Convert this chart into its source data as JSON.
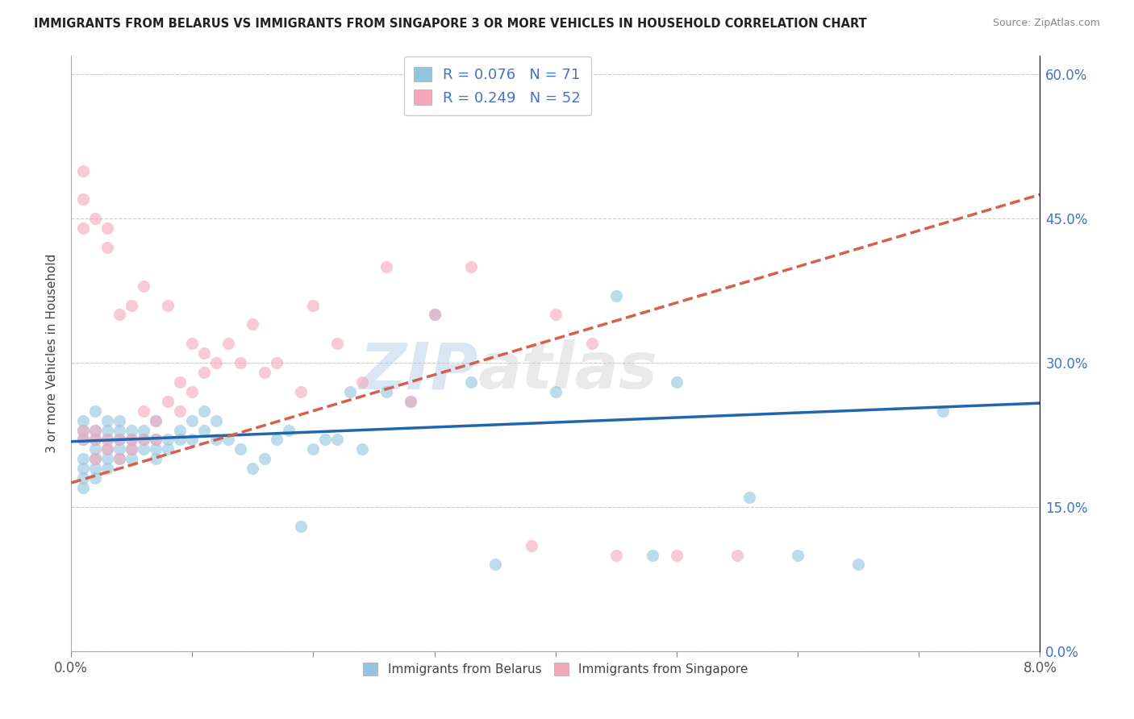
{
  "title": "IMMIGRANTS FROM BELARUS VS IMMIGRANTS FROM SINGAPORE 3 OR MORE VEHICLES IN HOUSEHOLD CORRELATION CHART",
  "source": "Source: ZipAtlas.com",
  "ylabel": "3 or more Vehicles in Household",
  "xmin": 0.0,
  "xmax": 0.08,
  "ymin": 0.0,
  "ymax": 0.62,
  "R_belarus": 0.076,
  "N_belarus": 71,
  "R_singapore": 0.249,
  "N_singapore": 52,
  "color_belarus": "#92c5de",
  "color_singapore": "#f4a7b9",
  "trendline_belarus_color": "#2166ac",
  "trendline_singapore_color": "#d6604d",
  "watermark_zip": "ZIP",
  "watermark_atlas": "atlas",
  "belarus_x": [
    0.001,
    0.001,
    0.001,
    0.001,
    0.001,
    0.001,
    0.001,
    0.002,
    0.002,
    0.002,
    0.002,
    0.002,
    0.002,
    0.002,
    0.003,
    0.003,
    0.003,
    0.003,
    0.003,
    0.003,
    0.004,
    0.004,
    0.004,
    0.004,
    0.004,
    0.005,
    0.005,
    0.005,
    0.005,
    0.006,
    0.006,
    0.006,
    0.007,
    0.007,
    0.007,
    0.007,
    0.008,
    0.008,
    0.009,
    0.009,
    0.01,
    0.01,
    0.011,
    0.011,
    0.012,
    0.012,
    0.013,
    0.014,
    0.015,
    0.016,
    0.017,
    0.018,
    0.019,
    0.02,
    0.021,
    0.022,
    0.023,
    0.024,
    0.026,
    0.028,
    0.03,
    0.033,
    0.035,
    0.04,
    0.045,
    0.048,
    0.05,
    0.056,
    0.06,
    0.065,
    0.072
  ],
  "belarus_y": [
    0.22,
    0.23,
    0.24,
    0.2,
    0.19,
    0.18,
    0.17,
    0.22,
    0.23,
    0.25,
    0.21,
    0.2,
    0.19,
    0.18,
    0.22,
    0.23,
    0.24,
    0.2,
    0.21,
    0.19,
    0.22,
    0.23,
    0.21,
    0.2,
    0.24,
    0.22,
    0.21,
    0.23,
    0.2,
    0.22,
    0.23,
    0.21,
    0.24,
    0.22,
    0.21,
    0.2,
    0.22,
    0.21,
    0.23,
    0.22,
    0.24,
    0.22,
    0.25,
    0.23,
    0.22,
    0.24,
    0.22,
    0.21,
    0.19,
    0.2,
    0.22,
    0.23,
    0.13,
    0.21,
    0.22,
    0.22,
    0.27,
    0.21,
    0.27,
    0.26,
    0.35,
    0.28,
    0.09,
    0.27,
    0.37,
    0.1,
    0.28,
    0.16,
    0.1,
    0.09,
    0.25
  ],
  "singapore_x": [
    0.001,
    0.001,
    0.001,
    0.001,
    0.001,
    0.002,
    0.002,
    0.002,
    0.002,
    0.003,
    0.003,
    0.003,
    0.003,
    0.004,
    0.004,
    0.004,
    0.005,
    0.005,
    0.005,
    0.006,
    0.006,
    0.006,
    0.007,
    0.007,
    0.008,
    0.008,
    0.009,
    0.009,
    0.01,
    0.01,
    0.011,
    0.011,
    0.012,
    0.013,
    0.014,
    0.015,
    0.016,
    0.017,
    0.019,
    0.02,
    0.022,
    0.024,
    0.026,
    0.028,
    0.03,
    0.033,
    0.038,
    0.04,
    0.043,
    0.045,
    0.05,
    0.055
  ],
  "singapore_y": [
    0.22,
    0.23,
    0.5,
    0.47,
    0.44,
    0.22,
    0.23,
    0.45,
    0.2,
    0.21,
    0.22,
    0.44,
    0.42,
    0.2,
    0.22,
    0.35,
    0.21,
    0.22,
    0.36,
    0.25,
    0.22,
    0.38,
    0.22,
    0.24,
    0.26,
    0.36,
    0.25,
    0.28,
    0.27,
    0.32,
    0.29,
    0.31,
    0.3,
    0.32,
    0.3,
    0.34,
    0.29,
    0.3,
    0.27,
    0.36,
    0.32,
    0.28,
    0.4,
    0.26,
    0.35,
    0.4,
    0.11,
    0.35,
    0.32,
    0.1,
    0.1,
    0.1
  ],
  "trend_b_x0": 0.0,
  "trend_b_y0": 0.218,
  "trend_b_x1": 0.08,
  "trend_b_y1": 0.258,
  "trend_s_x0": 0.0,
  "trend_s_y0": 0.175,
  "trend_s_x1": 0.08,
  "trend_s_y1": 0.475
}
